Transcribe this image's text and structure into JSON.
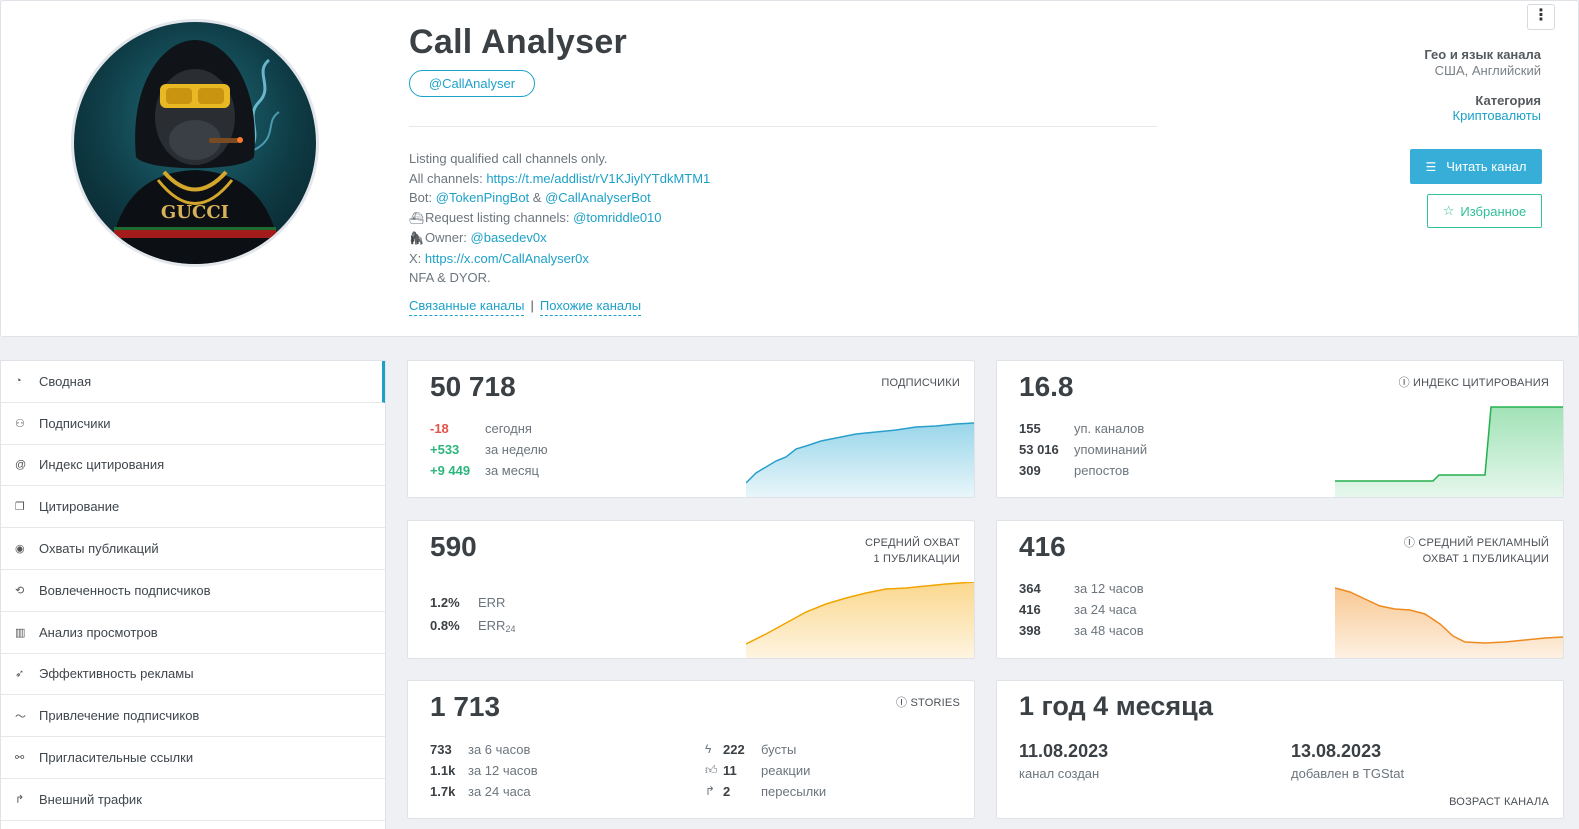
{
  "channel": {
    "title": "Call Analyser",
    "username": "@CallAnalyser",
    "description": {
      "l1": "Listing qualified call channels only.",
      "l2_prefix": "All channels: ",
      "l2_link": "https://t.me/addlist/rV1KJiylYTdkMTM1",
      "l3_prefix": "Bot: ",
      "l3_link1": "@TokenPingBot",
      "l3_mid": " & ",
      "l3_link2": "@CallAnalyserBot",
      "l4_prefix": "Request listing channels: ",
      "l4_link": "@tomriddle010",
      "l5_prefix": "Owner: ",
      "l5_link": "@basedev0x",
      "l6_prefix": "X: ",
      "l6_link": "https://x.com/CallAnalyser0x",
      "l7": "NFA & DYOR."
    },
    "related_link": "Связанные каналы",
    "similar_link": "Похожие каналы",
    "sep": "|"
  },
  "meta": {
    "geo_label": "Гео и язык канала",
    "geo_value": "США, Английский",
    "category_label": "Категория",
    "category_value": "Криптовалюты",
    "read_button": "Читать канал",
    "fav_button": "Избранное"
  },
  "sidebar": {
    "items": [
      {
        "label": "Сводная"
      },
      {
        "label": "Подписчики"
      },
      {
        "label": "Индекс цитирования"
      },
      {
        "label": "Цитирование"
      },
      {
        "label": "Охваты публикаций"
      },
      {
        "label": "Вовлеченность подписчиков"
      },
      {
        "label": "Анализ просмотров"
      },
      {
        "label": "Эффективность рекламы"
      },
      {
        "label": "Привлечение подписчиков"
      },
      {
        "label": "Пригласительные ссылки"
      },
      {
        "label": "Внешний трафик"
      }
    ]
  },
  "subscribers": {
    "value": "50 718",
    "caption": "ПОДПИСЧИКИ",
    "rows": [
      {
        "n": "-18",
        "l": "сегодня"
      },
      {
        "n": "+533",
        "l": "за неделю"
      },
      {
        "n": "+9 449",
        "l": "за месяц"
      }
    ]
  },
  "citation": {
    "value": "16.8",
    "caption": "ИНДЕКС ЦИТИРОВАНИЯ",
    "rows": [
      {
        "n": "155",
        "l": "уп. каналов"
      },
      {
        "n": "53 016",
        "l": "упоминаний"
      },
      {
        "n": "309",
        "l": "репостов"
      }
    ]
  },
  "reach": {
    "value": "590",
    "caption1": "СРЕДНИЙ ОХВАТ",
    "caption2": "1 ПУБЛИКАЦИИ",
    "rows": [
      {
        "n": "1.2%",
        "l": "ERR"
      },
      {
        "n": "0.8%",
        "l": "ERR",
        "sub": "24"
      }
    ]
  },
  "ad_reach": {
    "value": "416",
    "caption1": "СРЕДНИЙ РЕКЛАМНЫЙ",
    "caption2": "ОХВАТ 1 ПУБЛИКАЦИИ",
    "rows": [
      {
        "n": "364",
        "l": "за 12 часов"
      },
      {
        "n": "416",
        "l": "за 24 часа"
      },
      {
        "n": "398",
        "l": "за 48 часов"
      }
    ]
  },
  "stories": {
    "value": "1 713",
    "caption": "STORIES",
    "left_rows": [
      {
        "n": "733",
        "l": "за 6 часов"
      },
      {
        "n": "1.1k",
        "l": "за 12 часов"
      },
      {
        "n": "1.7k",
        "l": "за 24 часа"
      }
    ],
    "right_rows": [
      {
        "n": "222",
        "l": "бусты"
      },
      {
        "n": "11",
        "l": "реакции"
      },
      {
        "n": "2",
        "l": "пересылки"
      }
    ]
  },
  "age": {
    "value": "1 год 4 месяца",
    "created_date": "11.08.2023",
    "created_label": "канал создан",
    "added_date": "13.08.2023",
    "added_label": "добавлен в TGStat",
    "caption": "ВОЗРАСТ КАНАЛА"
  },
  "colors": {
    "accent": "#1da1c8",
    "subs_chart": "#45b4d9",
    "citation_chart": "#2fbf5f",
    "reach_chart": "#f7b731",
    "ad_chart": "#f39c3c"
  }
}
